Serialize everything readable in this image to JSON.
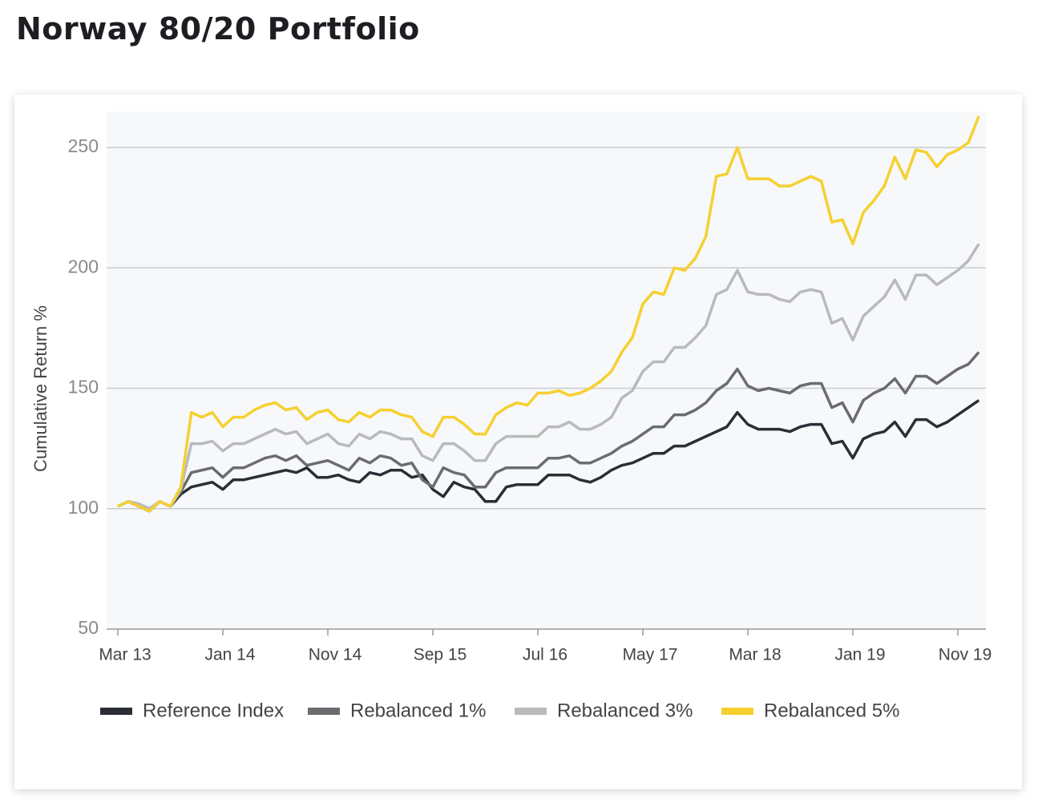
{
  "chart_data": {
    "type": "line",
    "title": "Norway 80/20 Portfolio",
    "y_label": "Cumulative Return %",
    "categories": [
      "Mar 13",
      null,
      null,
      null,
      null,
      null,
      null,
      null,
      null,
      null,
      "Jan 14",
      null,
      null,
      null,
      null,
      null,
      null,
      null,
      null,
      null,
      "Nov 14",
      null,
      null,
      null,
      null,
      null,
      null,
      null,
      null,
      null,
      "Sep 15",
      null,
      null,
      null,
      null,
      null,
      null,
      null,
      null,
      null,
      "Jul 16",
      null,
      null,
      null,
      null,
      null,
      null,
      null,
      null,
      null,
      "May 17",
      null,
      null,
      null,
      null,
      null,
      null,
      null,
      null,
      null,
      "Mar 18",
      null,
      null,
      null,
      null,
      null,
      null,
      null,
      null,
      null,
      "Jan 19",
      null,
      null,
      null,
      null,
      null,
      null,
      null,
      null,
      null,
      "Nov 19",
      null,
      null
    ],
    "series": [
      {
        "name": "Reference Index",
        "color": "#2b2e35",
        "values": [
          101,
          103,
          101,
          99,
          103,
          101,
          106,
          109,
          110,
          111,
          108,
          112,
          112,
          113,
          114,
          115,
          116,
          115,
          117,
          113,
          113,
          114,
          112,
          111,
          115,
          114,
          116,
          116,
          113,
          114,
          108,
          105,
          111,
          109,
          108,
          103,
          103,
          109,
          110,
          110,
          110,
          114,
          114,
          114,
          112,
          111,
          113,
          116,
          118,
          119,
          121,
          123,
          123,
          126,
          126,
          128,
          130,
          132,
          134,
          140,
          135,
          133,
          133,
          133,
          132,
          134,
          135,
          135,
          127,
          128,
          121,
          129,
          131,
          132,
          136,
          130,
          137,
          137,
          134,
          136,
          139,
          142,
          145
        ]
      },
      {
        "name": "Rebalanced 1%",
        "color": "#6b6c70",
        "values": [
          101,
          103,
          102,
          100,
          103,
          101,
          107,
          115,
          116,
          117,
          113,
          117,
          117,
          119,
          121,
          122,
          120,
          122,
          118,
          119,
          120,
          118,
          116,
          121,
          119,
          122,
          121,
          118,
          119,
          112,
          109,
          117,
          115,
          114,
          109,
          109,
          115,
          117,
          117,
          117,
          117,
          121,
          121,
          122,
          119,
          119,
          121,
          123,
          126,
          128,
          131,
          134,
          134,
          139,
          139,
          141,
          144,
          149,
          152,
          158,
          151,
          149,
          150,
          149,
          148,
          151,
          152,
          152,
          142,
          144,
          136,
          145,
          148,
          150,
          154,
          148,
          155,
          155,
          152,
          155,
          158,
          160,
          165
        ]
      },
      {
        "name": "Rebalanced 3%",
        "color": "#b9babc",
        "values": [
          101,
          103,
          102,
          100,
          103,
          101,
          108,
          127,
          127,
          128,
          124,
          127,
          127,
          129,
          131,
          133,
          131,
          132,
          127,
          129,
          131,
          127,
          126,
          131,
          129,
          132,
          131,
          129,
          129,
          122,
          120,
          127,
          127,
          124,
          120,
          120,
          127,
          130,
          130,
          130,
          130,
          134,
          134,
          136,
          133,
          133,
          135,
          138,
          146,
          149,
          157,
          161,
          161,
          167,
          167,
          171,
          176,
          189,
          191,
          199,
          190,
          189,
          189,
          187,
          186,
          190,
          191,
          190,
          177,
          179,
          170,
          180,
          184,
          188,
          195,
          187,
          197,
          197,
          193,
          196,
          199,
          203,
          210
        ]
      },
      {
        "name": "Rebalanced 5%",
        "color": "#f6d02f",
        "values": [
          101,
          103,
          101,
          99,
          103,
          101,
          109,
          140,
          138,
          140,
          134,
          138,
          138,
          141,
          143,
          144,
          141,
          142,
          137,
          140,
          141,
          137,
          136,
          140,
          138,
          141,
          141,
          139,
          138,
          132,
          130,
          138,
          138,
          135,
          131,
          131,
          139,
          142,
          144,
          143,
          148,
          148,
          149,
          147,
          148,
          150,
          153,
          157,
          165,
          171,
          185,
          190,
          189,
          200,
          199,
          204,
          213,
          238,
          239,
          250,
          237,
          237,
          237,
          234,
          234,
          236,
          238,
          236,
          219,
          220,
          210,
          223,
          228,
          234,
          246,
          237,
          249,
          248,
          242,
          247,
          249,
          252,
          263
        ]
      }
    ],
    "ylim": [
      50,
      265
    ],
    "yticks": [
      50,
      100,
      150,
      200,
      250
    ],
    "grid": true,
    "legend": "bottom"
  }
}
